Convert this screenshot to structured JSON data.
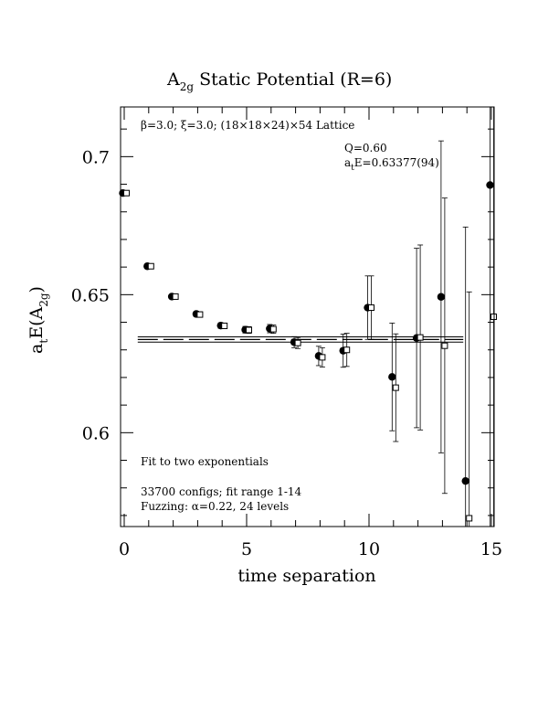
{
  "chart_data": {
    "type": "scatter",
    "title_main": "A",
    "title_sub": "2g",
    "title_rest": " Static Potential (R=6)",
    "xlabel": "time separation",
    "ylabel_a": "a",
    "ylabel_t": "t",
    "ylabel_E": "E(A",
    "ylabel_sub": "2g",
    "ylabel_close": ")",
    "xlim": [
      0,
      15
    ],
    "ylim": [
      0.566,
      0.718
    ],
    "x_ticks": [
      {
        "value": 0,
        "label": "0"
      },
      {
        "value": 5,
        "label": "5"
      },
      {
        "value": 10,
        "label": "10"
      },
      {
        "value": 15,
        "label": "15"
      }
    ],
    "y_ticks": [
      {
        "value": 0.6,
        "label": "0.6"
      },
      {
        "value": 0.65,
        "label": "0.65"
      },
      {
        "value": 0.7,
        "label": "0.7"
      }
    ],
    "annotations": {
      "lattice": "β=3.0; ξ=3.0; (18×18×24)×54 Lattice",
      "q": "Q=0.60",
      "energy_a": "a",
      "energy_t": "t",
      "energy_rest": "E=0.63377(94)",
      "fit": "Fit to two exponentials",
      "configs": "33700 configs; fit range 1-14",
      "fuzzing": "Fuzzing: α=0.22, 24 levels"
    },
    "fit": {
      "value": 0.63377,
      "error": 0.00094,
      "range": [
        1,
        14
      ]
    },
    "series": [
      {
        "marker": "filled-circle",
        "points": [
          {
            "x": 0,
            "y": 0.6868,
            "err": 0.0008
          },
          {
            "x": 1,
            "y": 0.6603,
            "err": 0.0008
          },
          {
            "x": 2,
            "y": 0.6493,
            "err": 0.0008
          },
          {
            "x": 3,
            "y": 0.643,
            "err": 0.001
          },
          {
            "x": 4,
            "y": 0.6388,
            "err": 0.001
          },
          {
            "x": 5,
            "y": 0.6373,
            "err": 0.0012
          },
          {
            "x": 6,
            "y": 0.6377,
            "err": 0.0015
          },
          {
            "x": 7,
            "y": 0.6328,
            "err": 0.002
          },
          {
            "x": 8,
            "y": 0.6278,
            "err": 0.0035
          },
          {
            "x": 9,
            "y": 0.6297,
            "err": 0.006
          },
          {
            "x": 10,
            "y": 0.6453,
            "err": 0.0115
          },
          {
            "x": 11,
            "y": 0.6202,
            "err": 0.0195
          },
          {
            "x": 12,
            "y": 0.6343,
            "err": 0.0325
          },
          {
            "x": 13,
            "y": 0.6492,
            "err": 0.0565
          },
          {
            "x": 14,
            "y": 0.5825,
            "err": 0.092
          },
          {
            "x": 15,
            "y": 0.6897,
            "err": 0.15
          }
        ]
      },
      {
        "marker": "open-square",
        "points": [
          {
            "x": 0,
            "y": 0.6868,
            "err": 0.0008
          },
          {
            "x": 1,
            "y": 0.6603,
            "err": 0.0008
          },
          {
            "x": 2,
            "y": 0.6493,
            "err": 0.0008
          },
          {
            "x": 3,
            "y": 0.6428,
            "err": 0.001
          },
          {
            "x": 4,
            "y": 0.6387,
            "err": 0.001
          },
          {
            "x": 5,
            "y": 0.6372,
            "err": 0.0012
          },
          {
            "x": 6,
            "y": 0.6375,
            "err": 0.0015
          },
          {
            "x": 7,
            "y": 0.6325,
            "err": 0.002
          },
          {
            "x": 8,
            "y": 0.6273,
            "err": 0.0035
          },
          {
            "x": 9,
            "y": 0.63,
            "err": 0.006
          },
          {
            "x": 10,
            "y": 0.6453,
            "err": 0.0115
          },
          {
            "x": 11,
            "y": 0.6163,
            "err": 0.0195
          },
          {
            "x": 12,
            "y": 0.6345,
            "err": 0.0335
          },
          {
            "x": 13,
            "y": 0.6315,
            "err": 0.0535
          },
          {
            "x": 14,
            "y": 0.569,
            "err": 0.082
          },
          {
            "x": 15,
            "y": 0.642,
            "err": 0.2
          }
        ]
      }
    ]
  }
}
